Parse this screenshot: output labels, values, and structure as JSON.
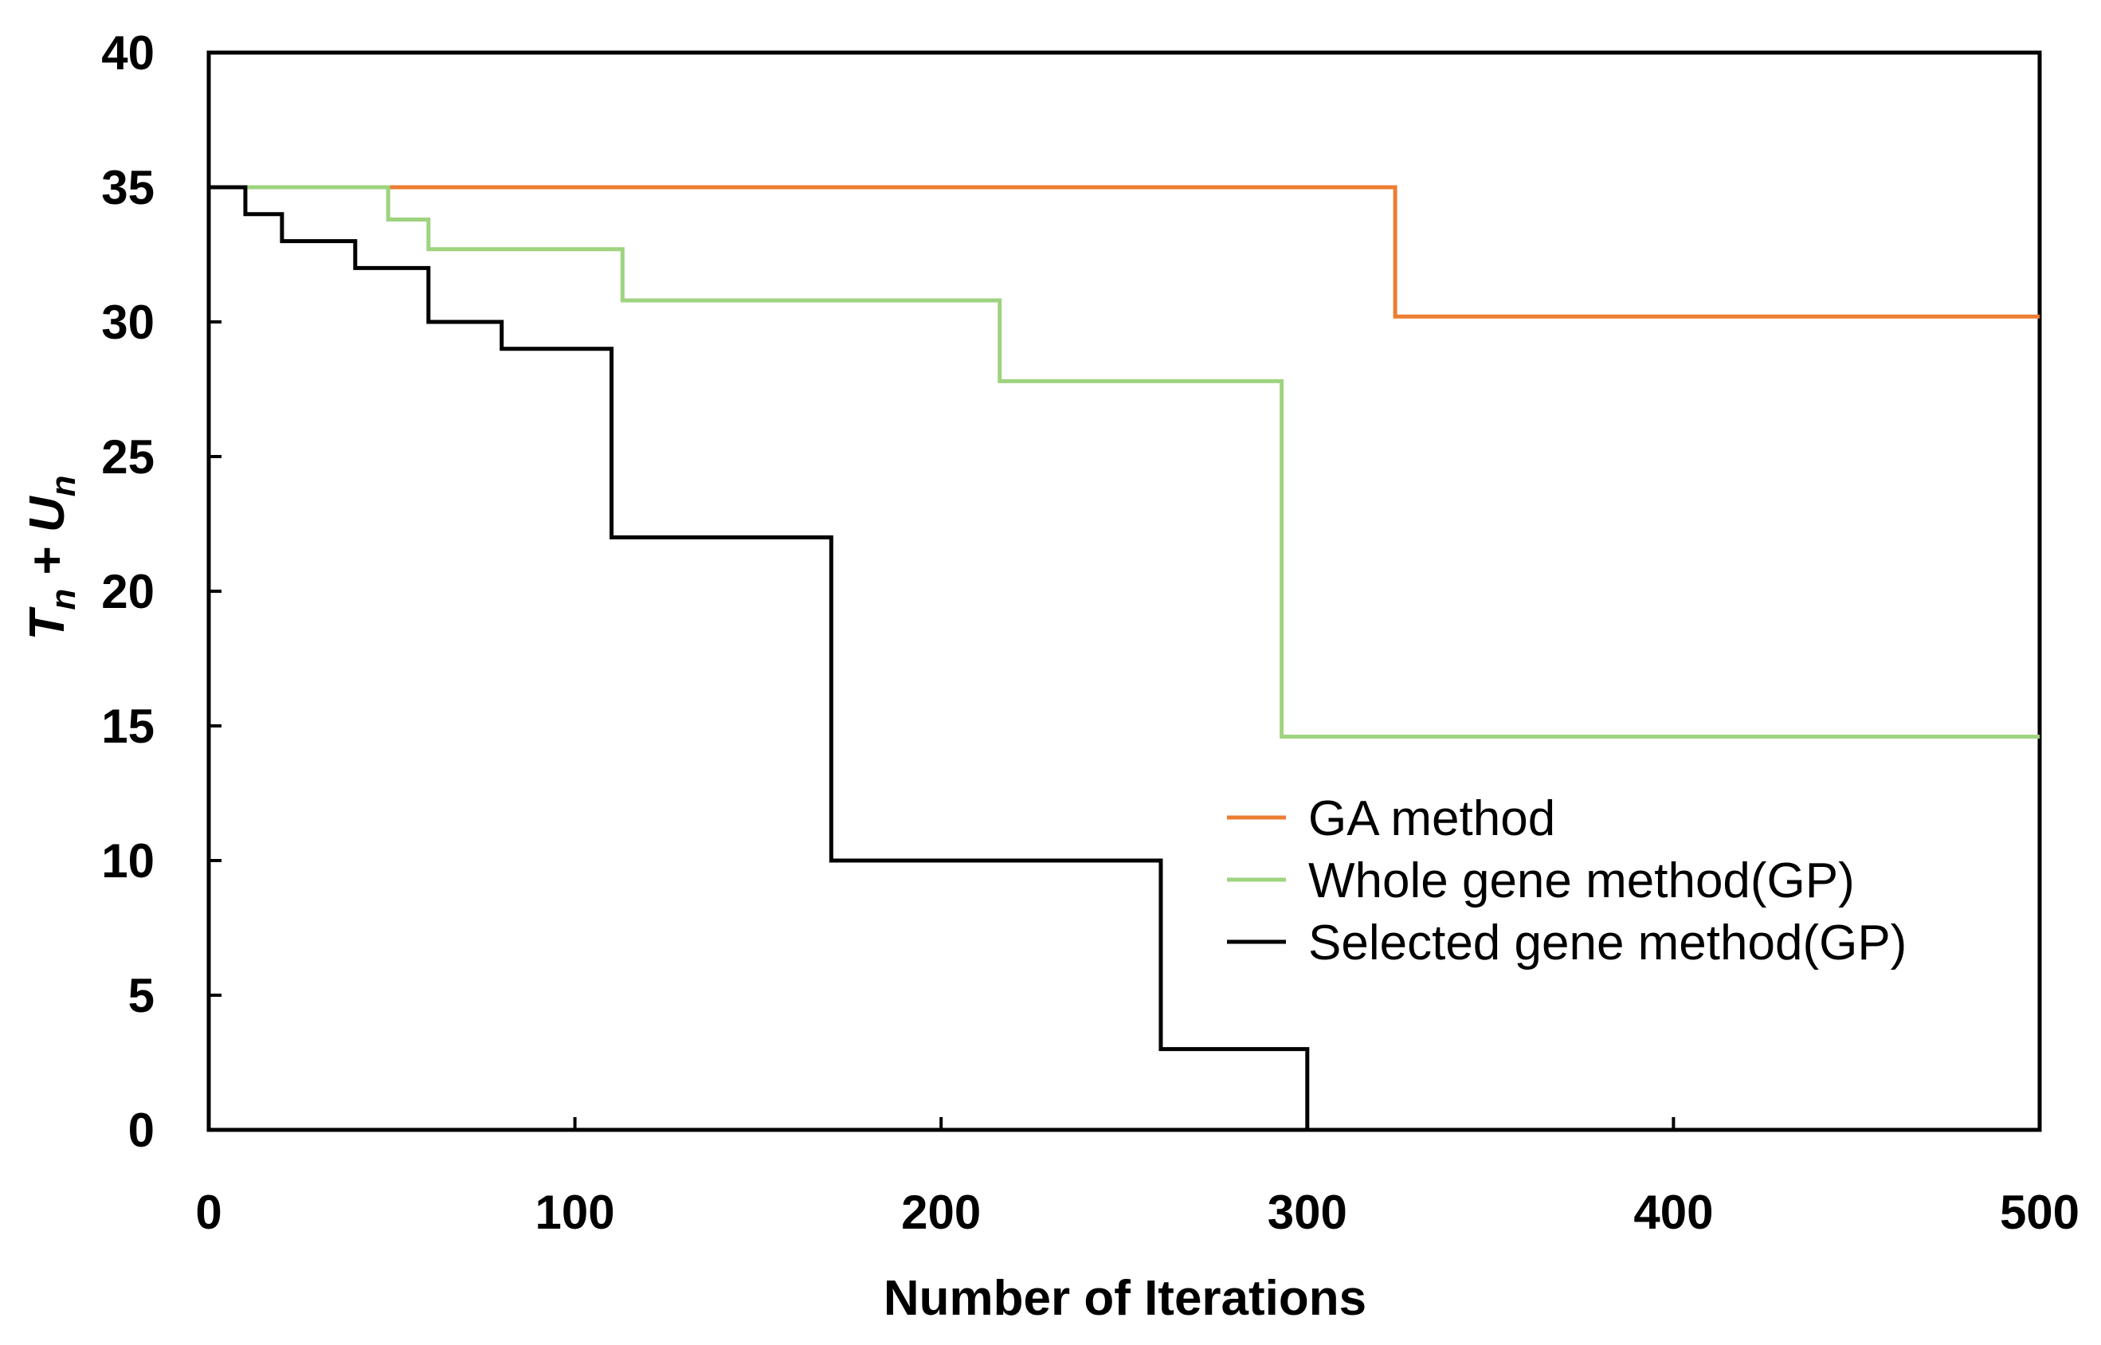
{
  "chart_data": {
    "type": "line",
    "step": true,
    "title": "",
    "xlabel": "Number of Iterations",
    "ylabel": {
      "T": "T",
      "sub1": "n",
      "plus": " + ",
      "U": "U",
      "sub2": "n"
    },
    "xlim": [
      0,
      500
    ],
    "ylim": [
      0,
      40
    ],
    "xticks": [
      0,
      100,
      200,
      300,
      400,
      500
    ],
    "yticks": [
      0,
      5,
      10,
      15,
      20,
      25,
      30,
      35,
      40
    ],
    "grid": false,
    "legend_position": "center-right",
    "series": [
      {
        "name": "GA method",
        "color": "#ED7D31",
        "x": [
          0,
          324,
          324,
          500
        ],
        "y": [
          35,
          35,
          30.2,
          30.2
        ]
      },
      {
        "name": "Whole gene method(GP)",
        "color": "#9ED37F",
        "x": [
          0,
          49,
          49,
          60,
          60,
          113,
          113,
          216,
          216,
          293,
          293,
          500
        ],
        "y": [
          35,
          35,
          33.8,
          33.8,
          32.7,
          32.7,
          30.8,
          30.8,
          27.8,
          27.8,
          14.6,
          14.6
        ]
      },
      {
        "name": "Selected gene method(GP)",
        "color": "#000000",
        "x": [
          0,
          10,
          10,
          20,
          20,
          40,
          40,
          60,
          60,
          80,
          80,
          110,
          110,
          170,
          170,
          260,
          260,
          300,
          300
        ],
        "y": [
          35,
          35,
          34,
          34,
          33,
          33,
          32,
          32,
          30,
          30,
          29,
          29,
          22,
          22,
          10,
          10,
          3,
          3,
          0
        ]
      }
    ]
  }
}
